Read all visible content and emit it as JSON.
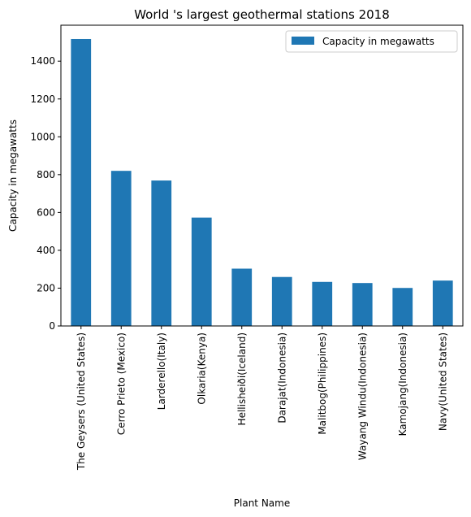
{
  "chart_data": {
    "type": "bar",
    "title": "World 's largest geothermal stations 2018",
    "xlabel": "Plant Name",
    "ylabel": "Capacity in megawatts",
    "categories": [
      "The Geysers (United States)",
      "Cerro Prieto (Mexico)",
      "Larderello(Italy)",
      "Olkaria(Kenya)",
      "Hellisheiði(Iceland)",
      "Darajat(Indonesia)",
      "Malitbog(Philippines)",
      "Wayang Windu(Indonesia)",
      "Kamojang(Indonesia)",
      "Navy(United States)"
    ],
    "series": [
      {
        "name": "Capacity in megawatts",
        "color": "#1f77b4",
        "values": [
          1517,
          820,
          769,
          573,
          303,
          259,
          233,
          227,
          201,
          240
        ]
      }
    ],
    "ylim": [
      0,
      1590
    ],
    "yticks": [
      0,
      200,
      400,
      600,
      800,
      1000,
      1200,
      1400
    ],
    "grid": false,
    "legend_position": "top-right"
  }
}
